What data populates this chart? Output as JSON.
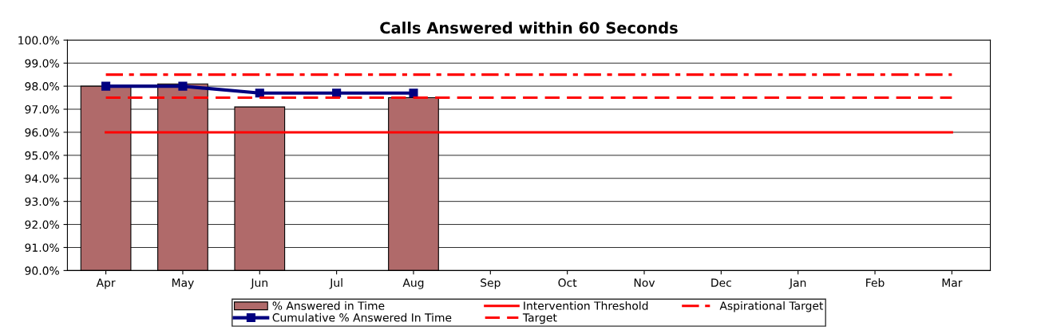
{
  "chart_data": {
    "type": "bar",
    "title": "Calls Answered within 60 Seconds",
    "categories": [
      "Apr",
      "May",
      "Jun",
      "Jul",
      "Aug",
      "Sep",
      "Oct",
      "Nov",
      "Dec",
      "Jan",
      "Feb",
      "Mar"
    ],
    "series": [
      {
        "name": "% Answered in Time",
        "color": "#b06a6a",
        "values": [
          98.0,
          98.1,
          97.1,
          null,
          97.5,
          null,
          null,
          null,
          null,
          null,
          null,
          null
        ]
      },
      {
        "name": "Cumulative % Answered In Time",
        "type": "line",
        "color": "#000080",
        "marker": "square",
        "line_style": "solid",
        "values": [
          98.0,
          98.0,
          97.7,
          97.7,
          97.7,
          null,
          null,
          null,
          null,
          null,
          null,
          null
        ]
      },
      {
        "name": "Intervention Threshold",
        "type": "line",
        "color": "#ff0000",
        "line_style": "solid",
        "values": [
          96.0,
          96.0,
          96.0,
          96.0,
          96.0,
          96.0,
          96.0,
          96.0,
          96.0,
          96.0,
          96.0,
          96.0
        ]
      },
      {
        "name": "Target",
        "type": "line",
        "color": "#ff0000",
        "line_style": "dashed",
        "values": [
          97.5,
          97.5,
          97.5,
          97.5,
          97.5,
          97.5,
          97.5,
          97.5,
          97.5,
          97.5,
          97.5,
          97.5
        ]
      },
      {
        "name": "Aspirational Target",
        "type": "line",
        "color": "#ff0000",
        "line_style": "dashdot",
        "values": [
          98.5,
          98.5,
          98.5,
          98.5,
          98.5,
          98.5,
          98.5,
          98.5,
          98.5,
          98.5,
          98.5,
          98.5
        ]
      }
    ],
    "ylim": [
      90,
      100
    ],
    "yticks": [
      {
        "value": 90,
        "label": "90.0%"
      },
      {
        "value": 91,
        "label": "91.0%"
      },
      {
        "value": 92,
        "label": "92.0%"
      },
      {
        "value": 93,
        "label": "93.0%"
      },
      {
        "value": 94,
        "label": "94.0%"
      },
      {
        "value": 95,
        "label": "95.0%"
      },
      {
        "value": 96,
        "label": "96.0%"
      },
      {
        "value": 97,
        "label": "97.0%"
      },
      {
        "value": 98,
        "label": "98.0%"
      },
      {
        "value": 99,
        "label": "99.0%"
      },
      {
        "value": 100,
        "label": "100.0%"
      }
    ],
    "grid": "y",
    "legend": "bottom"
  }
}
